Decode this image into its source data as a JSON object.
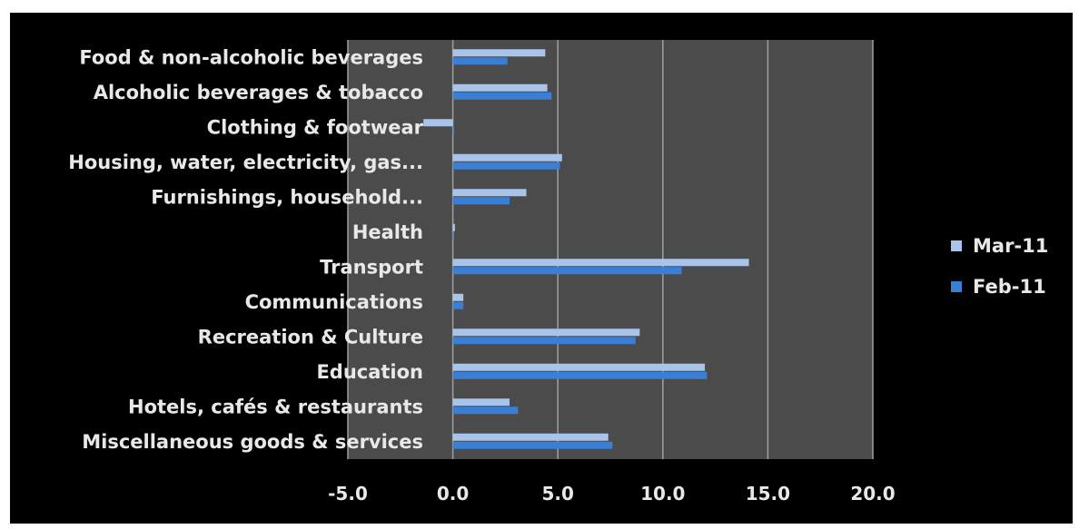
{
  "chart_data": {
    "type": "bar",
    "orientation": "horizontal",
    "categories": [
      "Food & non-alcoholic beverages",
      "Alcoholic beverages & tobacco",
      "Clothing & footwear",
      "Housing, water,  electricity, gas...",
      "Furnishings, household...",
      "Health",
      "Transport",
      "Communications",
      "Recreation & Culture",
      "Education",
      "Hotels, cafés & restaurants",
      "Miscellaneous goods & services"
    ],
    "series": [
      {
        "name": "Mar-11",
        "color": "#a9c4ea",
        "values": [
          4.4,
          4.5,
          -1.4,
          5.2,
          3.5,
          0.1,
          14.1,
          0.5,
          8.9,
          12.0,
          2.7,
          7.4
        ]
      },
      {
        "name": "Feb-11",
        "color": "#3a7fd6",
        "values": [
          2.6,
          4.7,
          0.0,
          5.1,
          2.7,
          0.0,
          10.9,
          0.5,
          8.7,
          12.1,
          3.1,
          7.6
        ]
      }
    ],
    "xlim": [
      -5.0,
      20.0
    ],
    "xticks": [
      "-5.0",
      "0.0",
      "5.0",
      "10.0",
      "15.0",
      "20.0"
    ],
    "grid": true,
    "legend_position": "right",
    "colors": {
      "background": "#000000",
      "plot_area": "#4b4b4b",
      "gridline": "#a0a0a0",
      "text": "#e8e8e8"
    }
  }
}
